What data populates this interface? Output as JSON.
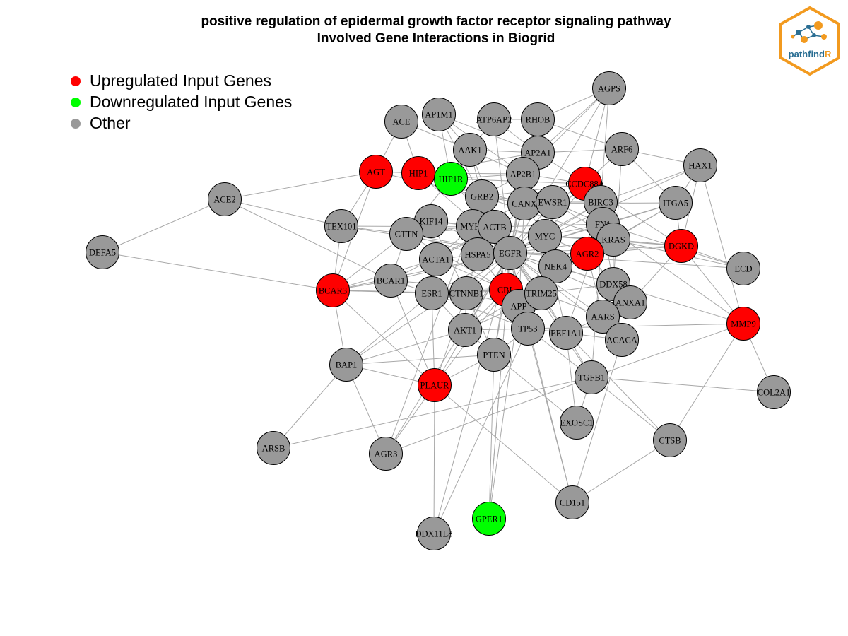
{
  "title": {
    "line1": "positive regulation of epidermal growth factor receptor signaling pathway",
    "line2": "Involved Gene Interactions in Biogrid"
  },
  "legend": {
    "items": [
      {
        "label": "Upregulated Input Genes",
        "color": "#ff0000"
      },
      {
        "label": "Downregulated Input Genes",
        "color": "#00ff00"
      },
      {
        "label": "Other",
        "color": "#999999"
      }
    ]
  },
  "logo": {
    "text_main": "pathfind",
    "text_accent": "R",
    "hex_color": "#f29a1f",
    "text_color": "#2a6e93"
  },
  "colors": {
    "edge": "#a8a8a8",
    "up": "#ff0000",
    "down": "#00ff00",
    "other": "#999999",
    "node_stroke": "#000000"
  },
  "nodes": [
    {
      "id": "AGPS",
      "group": "other"
    },
    {
      "id": "AP1M1",
      "group": "other"
    },
    {
      "id": "ACE",
      "group": "other"
    },
    {
      "id": "ATP6AP2",
      "group": "other"
    },
    {
      "id": "RHOB",
      "group": "other"
    },
    {
      "id": "AAK1",
      "group": "other"
    },
    {
      "id": "AP2A1",
      "group": "other"
    },
    {
      "id": "ARF6",
      "group": "other"
    },
    {
      "id": "HAX1",
      "group": "other"
    },
    {
      "id": "AGT",
      "group": "up"
    },
    {
      "id": "HIP1",
      "group": "up"
    },
    {
      "id": "HIP1R",
      "group": "down"
    },
    {
      "id": "AP2B1",
      "group": "other"
    },
    {
      "id": "CCDC88A",
      "group": "up"
    },
    {
      "id": "ACE2",
      "group": "other"
    },
    {
      "id": "GRB2",
      "group": "other"
    },
    {
      "id": "CANX",
      "group": "other"
    },
    {
      "id": "EWSR1",
      "group": "other"
    },
    {
      "id": "BIRC3",
      "group": "other"
    },
    {
      "id": "ITGA5",
      "group": "other"
    },
    {
      "id": "TEX101",
      "group": "other"
    },
    {
      "id": "KIF14",
      "group": "other"
    },
    {
      "id": "CTTN",
      "group": "other"
    },
    {
      "id": "MYH9",
      "group": "other"
    },
    {
      "id": "ACTB",
      "group": "other"
    },
    {
      "id": "FN1",
      "group": "other"
    },
    {
      "id": "MYC",
      "group": "other"
    },
    {
      "id": "KRAS",
      "group": "other"
    },
    {
      "id": "DGKD",
      "group": "up"
    },
    {
      "id": "DEFA5",
      "group": "other"
    },
    {
      "id": "ACTA1",
      "group": "other"
    },
    {
      "id": "HSPA5",
      "group": "other"
    },
    {
      "id": "EGFR",
      "group": "other"
    },
    {
      "id": "AGR2",
      "group": "up"
    },
    {
      "id": "NEK4",
      "group": "other"
    },
    {
      "id": "ECD",
      "group": "other"
    },
    {
      "id": "BCAR1",
      "group": "other"
    },
    {
      "id": "BCAR3",
      "group": "up"
    },
    {
      "id": "ESR1",
      "group": "other"
    },
    {
      "id": "CTNNB1",
      "group": "other"
    },
    {
      "id": "CBL",
      "group": "up"
    },
    {
      "id": "APP",
      "group": "other"
    },
    {
      "id": "TRIM25",
      "group": "other"
    },
    {
      "id": "DDX58",
      "group": "other"
    },
    {
      "id": "ANXA1",
      "group": "other"
    },
    {
      "id": "AARS",
      "group": "other"
    },
    {
      "id": "MMP9",
      "group": "up"
    },
    {
      "id": "AKT1",
      "group": "other"
    },
    {
      "id": "TP53",
      "group": "other"
    },
    {
      "id": "EEF1A1",
      "group": "other"
    },
    {
      "id": "ACACA",
      "group": "other"
    },
    {
      "id": "PTEN",
      "group": "other"
    },
    {
      "id": "BAP1",
      "group": "other"
    },
    {
      "id": "TGFB1",
      "group": "other"
    },
    {
      "id": "PLAUR",
      "group": "up"
    },
    {
      "id": "COL2A1",
      "group": "other"
    },
    {
      "id": "EXOSC1",
      "group": "other"
    },
    {
      "id": "CTSB",
      "group": "other"
    },
    {
      "id": "ARSB",
      "group": "other"
    },
    {
      "id": "AGR3",
      "group": "other"
    },
    {
      "id": "CD151",
      "group": "other"
    },
    {
      "id": "GPER1",
      "group": "down"
    },
    {
      "id": "DDX11L8",
      "group": "other"
    }
  ],
  "edges": [
    [
      "ACE2",
      "DEFA5"
    ],
    [
      "ACE2",
      "AGT"
    ],
    [
      "ACE2",
      "TEX101"
    ],
    [
      "ACE2",
      "BCAR1"
    ],
    [
      "DEFA5",
      "BCAR3"
    ],
    [
      "AGT",
      "HIP1"
    ],
    [
      "AGT",
      "ACE"
    ],
    [
      "AGT",
      "TEX101"
    ],
    [
      "AGT",
      "BCAR3"
    ],
    [
      "AGT",
      "GRB2"
    ],
    [
      "ACE",
      "HIP1"
    ],
    [
      "ACE",
      "AAK1"
    ],
    [
      "HIP1",
      "HIP1R"
    ],
    [
      "HIP1",
      "AP2A1"
    ],
    [
      "HIP1",
      "AP2B1"
    ],
    [
      "HIP1",
      "GRB2"
    ],
    [
      "HIP1",
      "EGFR"
    ],
    [
      "HIP1",
      "CANX"
    ],
    [
      "HIP1R",
      "AP2B1"
    ],
    [
      "HIP1R",
      "AP1M1"
    ],
    [
      "HIP1R",
      "CTTN"
    ],
    [
      "HIP1R",
      "ACTB"
    ],
    [
      "HIP1R",
      "EGFR"
    ],
    [
      "HIP1R",
      "AAK1"
    ],
    [
      "HIP1R",
      "CCDC88A"
    ],
    [
      "AP1M1",
      "AAK1"
    ],
    [
      "AP1M1",
      "AP2A1"
    ],
    [
      "AP1M1",
      "AP2B1"
    ],
    [
      "AP1M1",
      "EGFR"
    ],
    [
      "ATP6AP2",
      "AP2A1"
    ],
    [
      "ATP6AP2",
      "AAK1"
    ],
    [
      "ATP6AP2",
      "EGFR"
    ],
    [
      "ATP6AP2",
      "RHOB"
    ],
    [
      "RHOB",
      "EGFR"
    ],
    [
      "RHOB",
      "AP2B1"
    ],
    [
      "RHOB",
      "ARF6"
    ],
    [
      "RHOB",
      "AGPS"
    ],
    [
      "AAK1",
      "AP2A1"
    ],
    [
      "AAK1",
      "AP2B1"
    ],
    [
      "AAK1",
      "EGFR"
    ],
    [
      "AAK1",
      "GRB2"
    ],
    [
      "AP2A1",
      "AP2B1"
    ],
    [
      "AP2A1",
      "EGFR"
    ],
    [
      "AP2A1",
      "CCDC88A"
    ],
    [
      "AP2A1",
      "ARF6"
    ],
    [
      "AP2A1",
      "AGPS"
    ],
    [
      "AP2B1",
      "EGFR"
    ],
    [
      "AP2B1",
      "CBL"
    ],
    [
      "AP2B1",
      "GRB2"
    ],
    [
      "AP2B1",
      "CCDC88A"
    ],
    [
      "AGPS",
      "EGFR"
    ],
    [
      "AGPS",
      "CCDC88A"
    ],
    [
      "AGPS",
      "BIRC3"
    ],
    [
      "AGPS",
      "AP2B1"
    ],
    [
      "ARF6",
      "EGFR"
    ],
    [
      "ARF6",
      "CCDC88A"
    ],
    [
      "ARF6",
      "ITGA5"
    ],
    [
      "ARF6",
      "HAX1"
    ],
    [
      "ARF6",
      "DDX58"
    ],
    [
      "HAX1",
      "DGKD"
    ],
    [
      "HAX1",
      "EGFR"
    ],
    [
      "HAX1",
      "BIRC3"
    ],
    [
      "HAX1",
      "MMP9"
    ],
    [
      "HAX1",
      "ITGA5"
    ],
    [
      "CCDC88A",
      "EGFR"
    ],
    [
      "CCDC88A",
      "BIRC3"
    ],
    [
      "CCDC88A",
      "MYC"
    ],
    [
      "CCDC88A",
      "FN1"
    ],
    [
      "CCDC88A",
      "DGKD"
    ],
    [
      "CCDC88A",
      "EWSR1"
    ],
    [
      "CCDC88A",
      "GRB2"
    ],
    [
      "ITGA5",
      "FN1"
    ],
    [
      "ITGA5",
      "EGFR"
    ],
    [
      "ITGA5",
      "DGKD"
    ],
    [
      "ITGA5",
      "KRAS"
    ],
    [
      "ITGA5",
      "AGR2"
    ],
    [
      "ITGA5",
      "CANX"
    ],
    [
      "DGKD",
      "EGFR"
    ],
    [
      "DGKD",
      "ECD"
    ],
    [
      "DGKD",
      "MMP9"
    ],
    [
      "DGKD",
      "KRAS"
    ],
    [
      "DGKD",
      "AGR2"
    ],
    [
      "DGKD",
      "MYC"
    ],
    [
      "DGKD",
      "ANXA1"
    ],
    [
      "ECD",
      "KRAS"
    ],
    [
      "ECD",
      "FN1"
    ],
    [
      "ECD",
      "EGFR"
    ],
    [
      "MMP9",
      "COL2A1"
    ],
    [
      "MMP9",
      "EGFR"
    ],
    [
      "MMP9",
      "AKT1"
    ],
    [
      "MMP9",
      "TGFB1"
    ],
    [
      "MMP9",
      "CTSB"
    ],
    [
      "MMP9",
      "FN1"
    ],
    [
      "TEX101",
      "CTTN"
    ],
    [
      "TEX101",
      "EGFR"
    ],
    [
      "TEX101",
      "BCAR3"
    ],
    [
      "TEX101",
      "ACTB"
    ],
    [
      "BCAR3",
      "BCAR1"
    ],
    [
      "BCAR3",
      "ESR1"
    ],
    [
      "BCAR3",
      "EGFR"
    ],
    [
      "BCAR3",
      "CTNNB1"
    ],
    [
      "BCAR3",
      "BAP1"
    ],
    [
      "BCAR3",
      "PLAUR"
    ],
    [
      "BCAR3",
      "CBL"
    ],
    [
      "BCAR3",
      "ACTA1"
    ],
    [
      "BCAR3",
      "CTTN"
    ],
    [
      "BCAR1",
      "EGFR"
    ],
    [
      "BCAR1",
      "CBL"
    ],
    [
      "BCAR1",
      "ESR1"
    ],
    [
      "BCAR1",
      "PLAUR"
    ],
    [
      "BCAR1",
      "CTTN"
    ],
    [
      "BCAR1",
      "ACTB"
    ],
    [
      "CTTN",
      "EGFR"
    ],
    [
      "CTTN",
      "KIF14"
    ],
    [
      "CTTN",
      "MYH9"
    ],
    [
      "CTTN",
      "ACTB"
    ],
    [
      "CTTN",
      "CBL"
    ],
    [
      "CTTN",
      "HSPA5"
    ],
    [
      "KIF14",
      "MYH9"
    ],
    [
      "KIF14",
      "ACTB"
    ],
    [
      "KIF14",
      "EGFR"
    ],
    [
      "KIF14",
      "CTNNB1"
    ],
    [
      "MYH9",
      "ACTB"
    ],
    [
      "MYH9",
      "EGFR"
    ],
    [
      "MYH9",
      "HSPA5"
    ],
    [
      "MYH9",
      "ACTA1"
    ],
    [
      "MYH9",
      "CANX"
    ],
    [
      "MYH9",
      "MYC"
    ],
    [
      "ACTB",
      "EGFR"
    ],
    [
      "ACTB",
      "HSPA5"
    ],
    [
      "ACTB",
      "ACTA1"
    ],
    [
      "ACTB",
      "CBL"
    ],
    [
      "ACTB",
      "TRIM25"
    ],
    [
      "ACTB",
      "MYC"
    ],
    [
      "ACTB",
      "FN1"
    ],
    [
      "ACTA1",
      "HSPA5"
    ],
    [
      "ACTA1",
      "ESR1"
    ],
    [
      "ACTA1",
      "CBL"
    ],
    [
      "HSPA5",
      "EGFR"
    ],
    [
      "HSPA5",
      "CBL"
    ],
    [
      "HSPA5",
      "CANX"
    ],
    [
      "HSPA5",
      "APP"
    ],
    [
      "HSPA5",
      "CTNNB1"
    ],
    [
      "EGFR",
      "GRB2"
    ],
    [
      "EGFR",
      "CBL"
    ],
    [
      "EGFR",
      "CANX"
    ],
    [
      "EGFR",
      "MYC"
    ],
    [
      "EGFR",
      "EWSR1"
    ],
    [
      "EGFR",
      "BIRC3"
    ],
    [
      "EGFR",
      "FN1"
    ],
    [
      "EGFR",
      "KRAS"
    ],
    [
      "EGFR",
      "AGR2"
    ],
    [
      "EGFR",
      "NEK4"
    ],
    [
      "EGFR",
      "ESR1"
    ],
    [
      "EGFR",
      "CTNNB1"
    ],
    [
      "EGFR",
      "TRIM25"
    ],
    [
      "EGFR",
      "APP"
    ],
    [
      "EGFR",
      "DDX58"
    ],
    [
      "EGFR",
      "ANXA1"
    ],
    [
      "EGFR",
      "AARS"
    ],
    [
      "EGFR",
      "AKT1"
    ],
    [
      "EGFR",
      "TP53"
    ],
    [
      "EGFR",
      "EEF1A1"
    ],
    [
      "EGFR",
      "ACACA"
    ],
    [
      "EGFR",
      "PTEN"
    ],
    [
      "EGFR",
      "TGFB1"
    ],
    [
      "EGFR",
      "PLAUR"
    ],
    [
      "EGFR",
      "GPER1"
    ],
    [
      "EGFR",
      "CD151"
    ],
    [
      "EGFR",
      "AGR3"
    ],
    [
      "EGFR",
      "DDX11L8"
    ],
    [
      "EGFR",
      "BAP1"
    ],
    [
      "GRB2",
      "CBL"
    ],
    [
      "GRB2",
      "CANX"
    ],
    [
      "GRB2",
      "EWSR1"
    ],
    [
      "GRB2",
      "ACTB"
    ],
    [
      "GRB2",
      "MYH9"
    ],
    [
      "GRB2",
      "KRAS"
    ],
    [
      "CANX",
      "EWSR1"
    ],
    [
      "CANX",
      "MYC"
    ],
    [
      "CANX",
      "APP"
    ],
    [
      "CANX",
      "HSPA5"
    ],
    [
      "EWSR1",
      "MYC"
    ],
    [
      "EWSR1",
      "BIRC3"
    ],
    [
      "EWSR1",
      "FN1"
    ],
    [
      "EWSR1",
      "KRAS"
    ],
    [
      "EWSR1",
      "TRIM25"
    ],
    [
      "BIRC3",
      "FN1"
    ],
    [
      "BIRC3",
      "MYC"
    ],
    [
      "BIRC3",
      "AGR2"
    ],
    [
      "BIRC3",
      "KRAS"
    ],
    [
      "FN1",
      "KRAS"
    ],
    [
      "FN1",
      "AGR2"
    ],
    [
      "FN1",
      "MYC"
    ],
    [
      "FN1",
      "NEK4"
    ],
    [
      "FN1",
      "DDX58"
    ],
    [
      "FN1",
      "TGFB1"
    ],
    [
      "FN1",
      "EEF1A1"
    ],
    [
      "KRAS",
      "AGR2"
    ],
    [
      "KRAS",
      "MYC"
    ],
    [
      "KRAS",
      "NEK4"
    ],
    [
      "KRAS",
      "DDX58"
    ],
    [
      "KRAS",
      "AKT1"
    ],
    [
      "MYC",
      "AGR2"
    ],
    [
      "MYC",
      "NEK4"
    ],
    [
      "MYC",
      "TRIM25"
    ],
    [
      "MYC",
      "TP53"
    ],
    [
      "MYC",
      "CBL"
    ],
    [
      "MYC",
      "EEF1A1"
    ],
    [
      "AGR2",
      "NEK4"
    ],
    [
      "AGR2",
      "DDX58"
    ],
    [
      "AGR2",
      "ANXA1"
    ],
    [
      "AGR2",
      "AARS"
    ],
    [
      "NEK4",
      "TRIM25"
    ],
    [
      "NEK4",
      "APP"
    ],
    [
      "NEK4",
      "DDX58"
    ],
    [
      "ESR1",
      "CTNNB1"
    ],
    [
      "ESR1",
      "AKT1"
    ],
    [
      "ESR1",
      "CBL"
    ],
    [
      "ESR1",
      "PLAUR"
    ],
    [
      "ESR1",
      "BAP1"
    ],
    [
      "ESR1",
      "TP53"
    ],
    [
      "CTNNB1",
      "CBL"
    ],
    [
      "CTNNB1",
      "AKT1"
    ],
    [
      "CTNNB1",
      "APP"
    ],
    [
      "CTNNB1",
      "PTEN"
    ],
    [
      "CTNNB1",
      "PLAUR"
    ],
    [
      "CBL",
      "APP"
    ],
    [
      "CBL",
      "TRIM25"
    ],
    [
      "CBL",
      "AKT1"
    ],
    [
      "CBL",
      "TP53"
    ],
    [
      "CBL",
      "PTEN"
    ],
    [
      "CBL",
      "PLAUR"
    ],
    [
      "APP",
      "TRIM25"
    ],
    [
      "APP",
      "TP53"
    ],
    [
      "APP",
      "AKT1"
    ],
    [
      "TRIM25",
      "DDX58"
    ],
    [
      "TRIM25",
      "TP53"
    ],
    [
      "TRIM25",
      "EEF1A1"
    ],
    [
      "TRIM25",
      "AARS"
    ],
    [
      "DDX58",
      "ANXA1"
    ],
    [
      "DDX58",
      "AARS"
    ],
    [
      "DDX58",
      "ACACA"
    ],
    [
      "ANXA1",
      "AARS"
    ],
    [
      "AARS",
      "EEF1A1"
    ],
    [
      "AARS",
      "ACACA"
    ],
    [
      "AKT1",
      "TP53"
    ],
    [
      "AKT1",
      "PTEN"
    ],
    [
      "TP53",
      "EEF1A1"
    ],
    [
      "TP53",
      "PTEN"
    ],
    [
      "TP53",
      "TGFB1"
    ],
    [
      "EEF1A1",
      "ACACA"
    ],
    [
      "EEF1A1",
      "TGFB1"
    ],
    [
      "PTEN",
      "PLAUR"
    ],
    [
      "PTEN",
      "BAP1"
    ],
    [
      "PTEN",
      "GPER1"
    ],
    [
      "PTEN",
      "EXOSC1"
    ],
    [
      "BAP1",
      "ARSB"
    ],
    [
      "BAP1",
      "AGR3"
    ],
    [
      "BAP1",
      "PLAUR"
    ],
    [
      "BAP1",
      "AKT1"
    ],
    [
      "TGFB1",
      "COL2A1"
    ],
    [
      "TGFB1",
      "EXOSC1"
    ],
    [
      "TGFB1",
      "CTSB"
    ],
    [
      "TGFB1",
      "ARSB"
    ],
    [
      "TGFB1",
      "AGR3"
    ],
    [
      "PLAUR",
      "AGR3"
    ],
    [
      "PLAUR",
      "DDX11L8"
    ],
    [
      "PLAUR",
      "CD151"
    ],
    [
      "EXOSC1",
      "EEF1A1"
    ],
    [
      "CTSB",
      "CD151"
    ],
    [
      "CTSB",
      "EEF1A1"
    ],
    [
      "CD151",
      "TP53"
    ],
    [
      "CD151",
      "ACACA"
    ],
    [
      "GPER1",
      "EGFR"
    ],
    [
      "GPER1",
      "APP"
    ],
    [
      "DDX11L8",
      "TP53"
    ],
    [
      "AGR3",
      "GRB2"
    ]
  ]
}
